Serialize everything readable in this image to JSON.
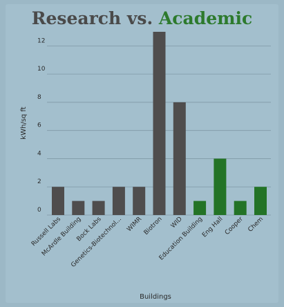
{
  "title_part1": "Research vs.",
  "title_part2": "Academic",
  "colors": {
    "research": "#4f4d4d",
    "academic": "#237326",
    "grid": "#7f99a6",
    "title": "#4a4a4a",
    "accent": "#2d7a2d"
  },
  "chart_data": {
    "type": "bar",
    "title": "Research vs. Academic",
    "xlabel": "Buildings",
    "ylabel": "kWh/sq ft",
    "ylim": [
      0,
      13
    ],
    "yticks": [
      0,
      2,
      4,
      6,
      8,
      10,
      12
    ],
    "grid": true,
    "categories": [
      "Russell Labs",
      "McArdle Building",
      "Bock Labs",
      "Genetics-Biotechnol...",
      "WIMR",
      "Biotron",
      "WID",
      "Education Building",
      "Eng Hall",
      "Cooper",
      "Chem"
    ],
    "values": [
      2,
      1,
      1,
      2,
      2,
      13,
      8,
      1,
      4,
      1,
      2
    ],
    "groups": [
      "research",
      "research",
      "research",
      "research",
      "research",
      "research",
      "research",
      "academic",
      "academic",
      "academic",
      "academic"
    ]
  }
}
